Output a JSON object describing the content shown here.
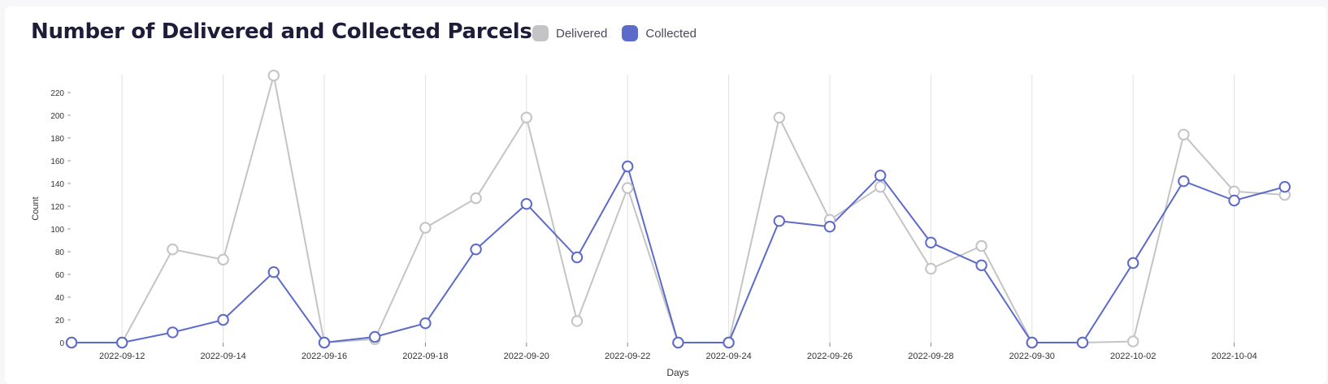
{
  "chart_data": {
    "type": "line",
    "title": "Number of Delivered and Collected Parcels",
    "xlabel": "Days",
    "ylabel": "Count",
    "ylim": [
      0,
      235
    ],
    "yticks": [
      0,
      20,
      40,
      60,
      80,
      100,
      120,
      140,
      160,
      180,
      200,
      220
    ],
    "xtick_labels": [
      "2022-09-12",
      "2022-09-14",
      "2022-09-16",
      "2022-09-18",
      "2022-09-20",
      "2022-09-22",
      "2022-09-24",
      "2022-09-26",
      "2022-09-28",
      "2022-09-30",
      "2022-10-02",
      "2022-10-04"
    ],
    "x": [
      "2022-09-11",
      "2022-09-12",
      "2022-09-13",
      "2022-09-14",
      "2022-09-15",
      "2022-09-16",
      "2022-09-17",
      "2022-09-18",
      "2022-09-19",
      "2022-09-20",
      "2022-09-21",
      "2022-09-22",
      "2022-09-23",
      "2022-09-24",
      "2022-09-25",
      "2022-09-26",
      "2022-09-27",
      "2022-09-28",
      "2022-09-29",
      "2022-09-30",
      "2022-10-01",
      "2022-10-02",
      "2022-10-03",
      "2022-10-04",
      "2022-10-05"
    ],
    "series": [
      {
        "name": "Delivered",
        "color": "#c4c4c6",
        "values": [
          0,
          0,
          82,
          73,
          235,
          0,
          3,
          101,
          127,
          198,
          19,
          136,
          0,
          0,
          198,
          108,
          137,
          65,
          85,
          0,
          0,
          1,
          183,
          133,
          130
        ]
      },
      {
        "name": "Collected",
        "color": "#5c6bc9",
        "values": [
          0,
          0,
          9,
          20,
          62,
          0,
          5,
          17,
          82,
          122,
          75,
          155,
          0,
          0,
          107,
          102,
          147,
          88,
          68,
          0,
          0,
          70,
          142,
          125,
          137
        ]
      }
    ],
    "grid": "vertical",
    "legend_position": "top"
  }
}
